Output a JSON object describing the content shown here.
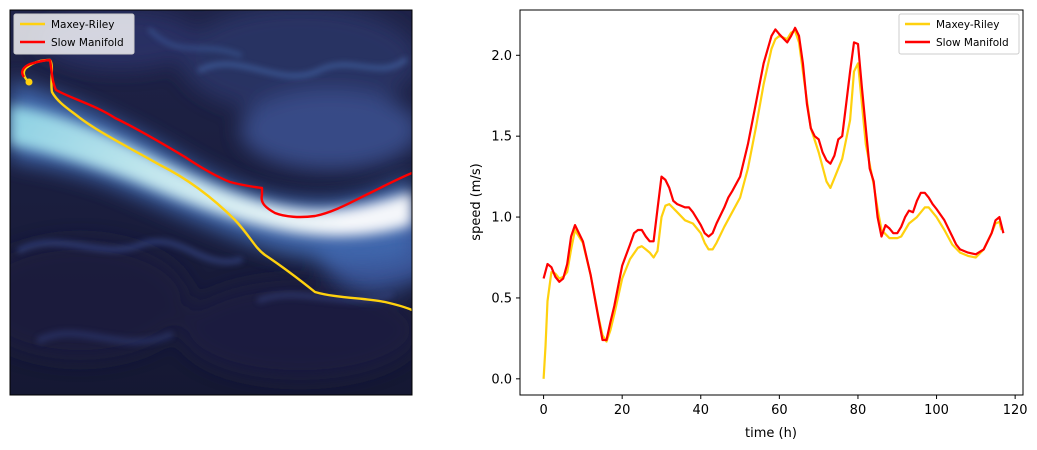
{
  "chart_data": [
    {
      "type": "line",
      "subtype": "trajectory-over-field",
      "background": "ocean current speed field (dark navy to cyan/white colormap)",
      "axes_visible": false,
      "legend": {
        "placement": "top-left",
        "entries": [
          "Maxey-Riley",
          "Slow Manifold"
        ]
      },
      "series": [
        {
          "name": "Maxey-Riley",
          "color": "#FFD10E"
        },
        {
          "name": "Slow Manifold",
          "color": "#FF0000"
        }
      ]
    },
    {
      "type": "line",
      "xlabel": "time (h)",
      "ylabel": "speed (m/s)",
      "xlim": [
        -6,
        122
      ],
      "ylim": [
        -0.1,
        2.28
      ],
      "xticks": [
        0,
        20,
        40,
        60,
        80,
        100,
        120
      ],
      "xtick_labels": [
        "0",
        "20",
        "40",
        "60",
        "80",
        "100",
        "120"
      ],
      "yticks": [
        0.0,
        0.5,
        1.0,
        1.5,
        2.0
      ],
      "ytick_labels": [
        "0.0",
        "0.5",
        "1.0",
        "1.5",
        "2.0"
      ],
      "grid": false,
      "legend": {
        "placement": "top-right",
        "entries": [
          "Maxey-Riley",
          "Slow Manifold"
        ]
      },
      "series": [
        {
          "name": "Maxey-Riley",
          "color": "#FFD10E",
          "points": [
            [
              0,
              0.0
            ],
            [
              0.5,
              0.2
            ],
            [
              1,
              0.48
            ],
            [
              2,
              0.66
            ],
            [
              3,
              0.65
            ],
            [
              4,
              0.62
            ],
            [
              5,
              0.63
            ],
            [
              6,
              0.66
            ],
            [
              7,
              0.8
            ],
            [
              8,
              0.92
            ],
            [
              10,
              0.84
            ],
            [
              12,
              0.64
            ],
            [
              14,
              0.38
            ],
            [
              15,
              0.27
            ],
            [
              16,
              0.23
            ],
            [
              17,
              0.3
            ],
            [
              18,
              0.4
            ],
            [
              20,
              0.62
            ],
            [
              22,
              0.74
            ],
            [
              24,
              0.81
            ],
            [
              25,
              0.82
            ],
            [
              26,
              0.8
            ],
            [
              27,
              0.78
            ],
            [
              28,
              0.75
            ],
            [
              29,
              0.79
            ],
            [
              30,
              1.0
            ],
            [
              31,
              1.07
            ],
            [
              32,
              1.08
            ],
            [
              34,
              1.03
            ],
            [
              36,
              0.98
            ],
            [
              38,
              0.96
            ],
            [
              40,
              0.9
            ],
            [
              41,
              0.84
            ],
            [
              42,
              0.8
            ],
            [
              43,
              0.8
            ],
            [
              44,
              0.84
            ],
            [
              46,
              0.94
            ],
            [
              48,
              1.03
            ],
            [
              50,
              1.12
            ],
            [
              52,
              1.3
            ],
            [
              54,
              1.55
            ],
            [
              56,
              1.82
            ],
            [
              58,
              2.04
            ],
            [
              59,
              2.1
            ],
            [
              60,
              2.12
            ],
            [
              62,
              2.1
            ],
            [
              63,
              2.14
            ],
            [
              64,
              2.15
            ],
            [
              65,
              2.08
            ],
            [
              66,
              1.9
            ],
            [
              68,
              1.55
            ],
            [
              70,
              1.4
            ],
            [
              72,
              1.22
            ],
            [
              73,
              1.18
            ],
            [
              74,
              1.24
            ],
            [
              76,
              1.36
            ],
            [
              78,
              1.6
            ],
            [
              79,
              1.9
            ],
            [
              80,
              1.95
            ],
            [
              81,
              1.7
            ],
            [
              82,
              1.45
            ],
            [
              84,
              1.2
            ],
            [
              85,
              1.05
            ],
            [
              86,
              0.92
            ],
            [
              88,
              0.87
            ],
            [
              90,
              0.87
            ],
            [
              91,
              0.88
            ],
            [
              93,
              0.96
            ],
            [
              95,
              1.0
            ],
            [
              97,
              1.06
            ],
            [
              98,
              1.06
            ],
            [
              100,
              1.0
            ],
            [
              102,
              0.92
            ],
            [
              104,
              0.83
            ],
            [
              106,
              0.78
            ],
            [
              108,
              0.76
            ],
            [
              110,
              0.75
            ],
            [
              112,
              0.8
            ],
            [
              114,
              0.9
            ],
            [
              115,
              0.96
            ],
            [
              116,
              0.97
            ],
            [
              116.5,
              0.92
            ]
          ]
        },
        {
          "name": "Slow Manifold",
          "color": "#FF0000",
          "points": [
            [
              0,
              0.62
            ],
            [
              1,
              0.71
            ],
            [
              2,
              0.69
            ],
            [
              3,
              0.63
            ],
            [
              4,
              0.6
            ],
            [
              5,
              0.62
            ],
            [
              6,
              0.71
            ],
            [
              7,
              0.88
            ],
            [
              8,
              0.95
            ],
            [
              10,
              0.85
            ],
            [
              12,
              0.64
            ],
            [
              14,
              0.37
            ],
            [
              15,
              0.24
            ],
            [
              16,
              0.24
            ],
            [
              17,
              0.35
            ],
            [
              18,
              0.45
            ],
            [
              20,
              0.7
            ],
            [
              22,
              0.83
            ],
            [
              23,
              0.9
            ],
            [
              24,
              0.92
            ],
            [
              25,
              0.92
            ],
            [
              26,
              0.88
            ],
            [
              27,
              0.85
            ],
            [
              28,
              0.85
            ],
            [
              29,
              1.05
            ],
            [
              30,
              1.25
            ],
            [
              31,
              1.23
            ],
            [
              32,
              1.18
            ],
            [
              33,
              1.1
            ],
            [
              34,
              1.08
            ],
            [
              36,
              1.06
            ],
            [
              37,
              1.06
            ],
            [
              38,
              1.03
            ],
            [
              40,
              0.95
            ],
            [
              41,
              0.9
            ],
            [
              42,
              0.88
            ],
            [
              43,
              0.9
            ],
            [
              44,
              0.96
            ],
            [
              46,
              1.06
            ],
            [
              47,
              1.12
            ],
            [
              48,
              1.16
            ],
            [
              50,
              1.25
            ],
            [
              52,
              1.45
            ],
            [
              54,
              1.7
            ],
            [
              56,
              1.95
            ],
            [
              58,
              2.12
            ],
            [
              59,
              2.16
            ],
            [
              60,
              2.13
            ],
            [
              62,
              2.08
            ],
            [
              63,
              2.12
            ],
            [
              64,
              2.17
            ],
            [
              65,
              2.12
            ],
            [
              66,
              1.95
            ],
            [
              67,
              1.7
            ],
            [
              68,
              1.55
            ],
            [
              69,
              1.5
            ],
            [
              70,
              1.48
            ],
            [
              71,
              1.4
            ],
            [
              72,
              1.35
            ],
            [
              73,
              1.33
            ],
            [
              74,
              1.38
            ],
            [
              75,
              1.48
            ],
            [
              76,
              1.5
            ],
            [
              77,
              1.7
            ],
            [
              78,
              1.9
            ],
            [
              79,
              2.08
            ],
            [
              80,
              2.07
            ],
            [
              81,
              1.8
            ],
            [
              82,
              1.55
            ],
            [
              83,
              1.3
            ],
            [
              84,
              1.22
            ],
            [
              85,
              1.0
            ],
            [
              86,
              0.88
            ],
            [
              87,
              0.95
            ],
            [
              88,
              0.93
            ],
            [
              89,
              0.9
            ],
            [
              90,
              0.9
            ],
            [
              91,
              0.94
            ],
            [
              92,
              1.0
            ],
            [
              93,
              1.04
            ],
            [
              94,
              1.03
            ],
            [
              95,
              1.1
            ],
            [
              96,
              1.15
            ],
            [
              97,
              1.15
            ],
            [
              98,
              1.12
            ],
            [
              99,
              1.08
            ],
            [
              100,
              1.05
            ],
            [
              102,
              0.98
            ],
            [
              104,
              0.88
            ],
            [
              105,
              0.83
            ],
            [
              106,
              0.8
            ],
            [
              108,
              0.78
            ],
            [
              110,
              0.77
            ],
            [
              112,
              0.8
            ],
            [
              114,
              0.9
            ],
            [
              115,
              0.98
            ],
            [
              116,
              1.0
            ],
            [
              117,
              0.9
            ]
          ]
        }
      ]
    }
  ]
}
